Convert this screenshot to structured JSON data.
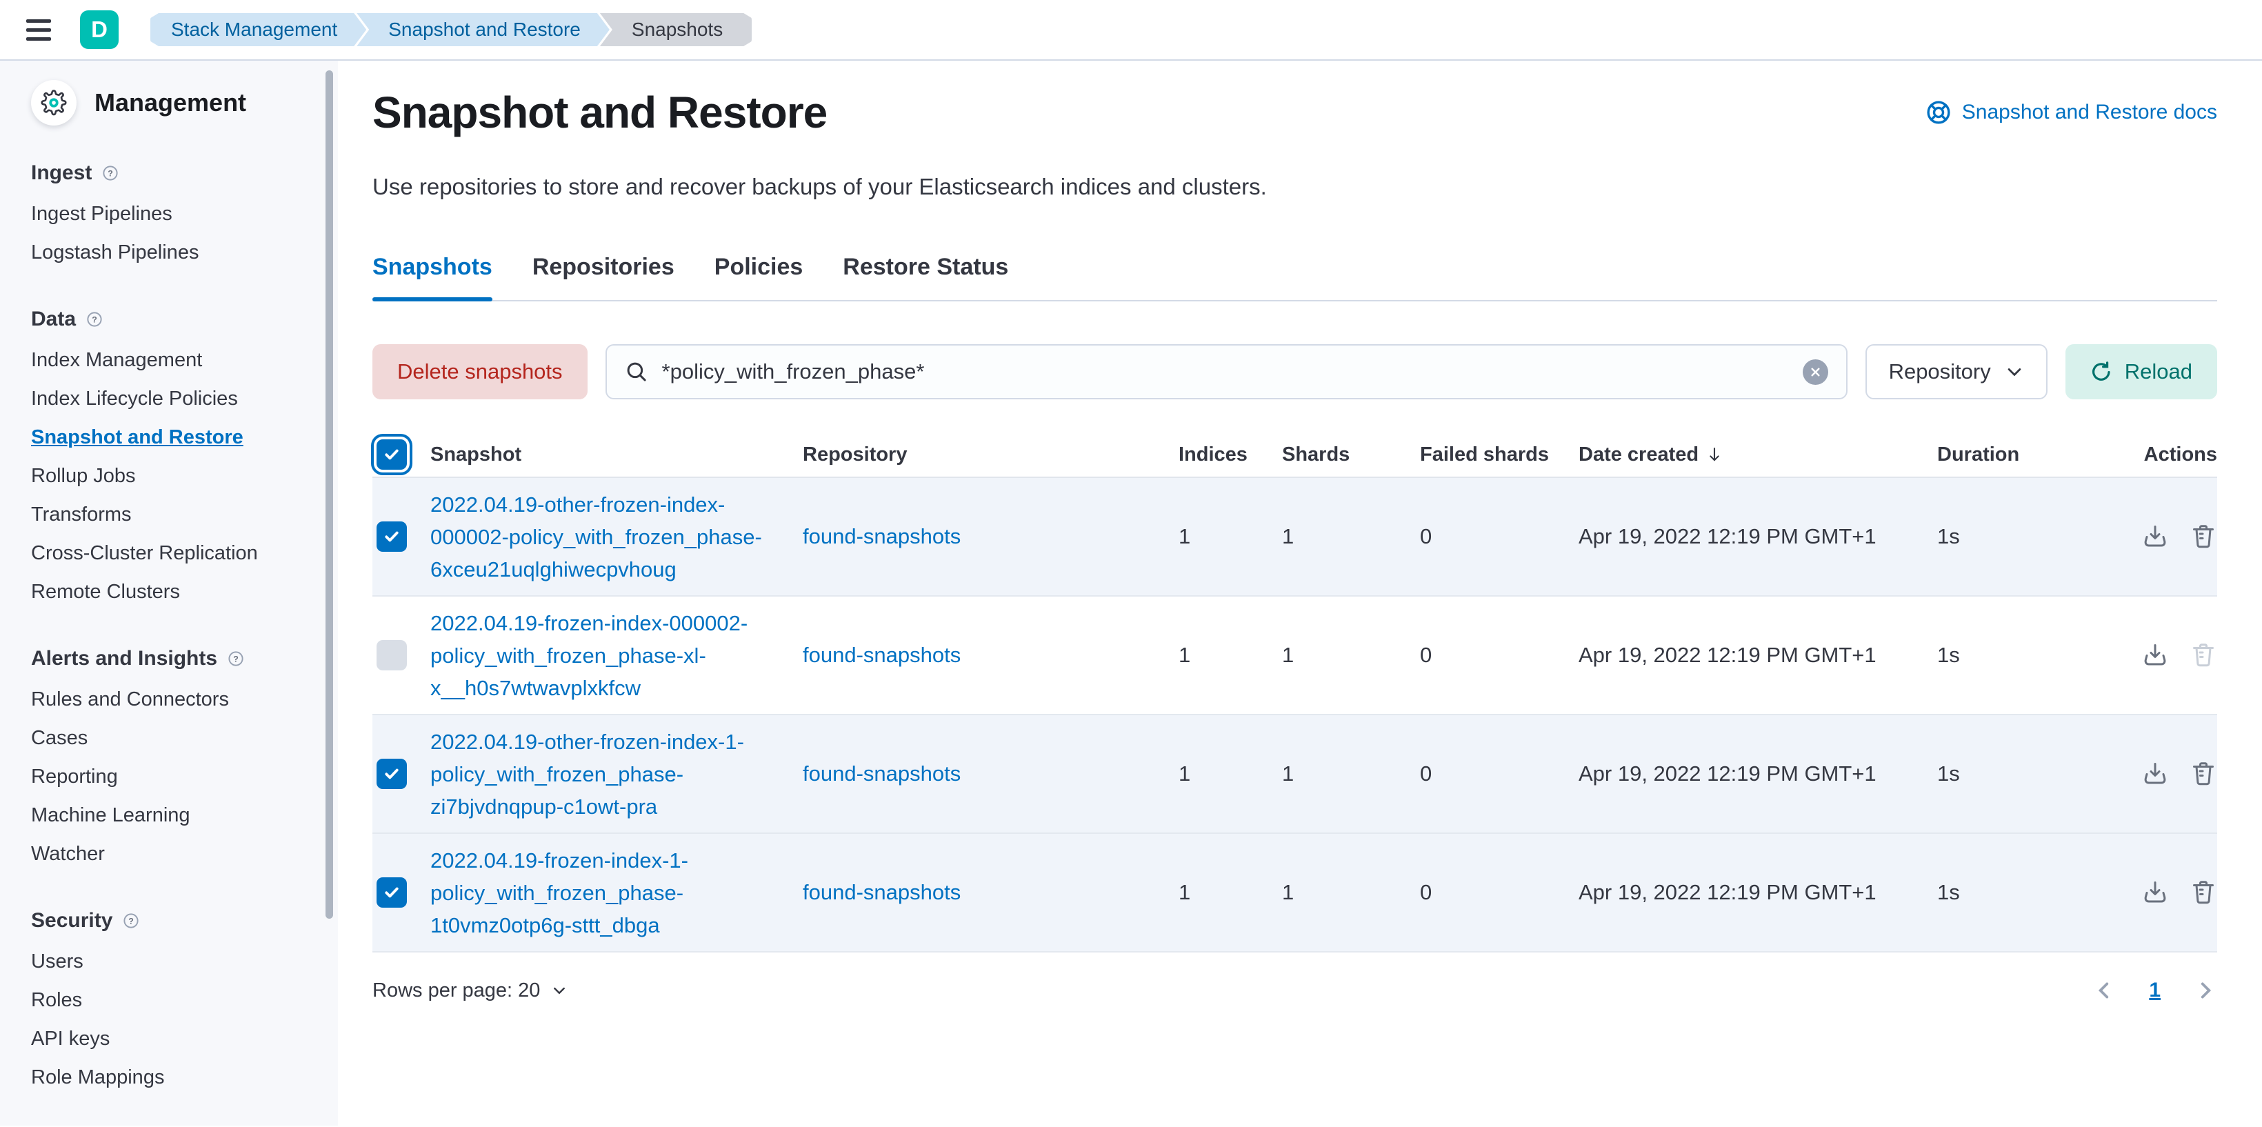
{
  "colors": {
    "accent": "#0071c2",
    "danger_text": "#b4251d",
    "danger_bg": "#f1d8d8",
    "success_text": "#00716b",
    "success_bg": "#d8f1ec",
    "avatar": "#00bfb3",
    "selected_row_bg": "#f0f4fa",
    "breadcrumb_blue_bg": "#cfe4f5",
    "breadcrumb_blue_text": "#00609e",
    "breadcrumb_gray_bg": "#d3d6dc"
  },
  "header": {
    "avatar_initial": "D",
    "breadcrumbs": [
      {
        "label": "Stack Management",
        "style": "blue"
      },
      {
        "label": "Snapshot and Restore",
        "style": "blue"
      },
      {
        "label": "Snapshots",
        "style": "gray"
      }
    ]
  },
  "sidebar": {
    "title": "Management",
    "sections": [
      {
        "label": "Ingest",
        "items": [
          {
            "label": "Ingest Pipelines"
          },
          {
            "label": "Logstash Pipelines"
          }
        ]
      },
      {
        "label": "Data",
        "items": [
          {
            "label": "Index Management"
          },
          {
            "label": "Index Lifecycle Policies"
          },
          {
            "label": "Snapshot and Restore",
            "active": true
          },
          {
            "label": "Rollup Jobs"
          },
          {
            "label": "Transforms"
          },
          {
            "label": "Cross-Cluster Replication"
          },
          {
            "label": "Remote Clusters"
          }
        ]
      },
      {
        "label": "Alerts and Insights",
        "items": [
          {
            "label": "Rules and Connectors"
          },
          {
            "label": "Cases"
          },
          {
            "label": "Reporting"
          },
          {
            "label": "Machine Learning"
          },
          {
            "label": "Watcher"
          }
        ]
      },
      {
        "label": "Security",
        "items": [
          {
            "label": "Users"
          },
          {
            "label": "Roles"
          },
          {
            "label": "API keys"
          },
          {
            "label": "Role Mappings"
          }
        ]
      }
    ]
  },
  "page": {
    "title": "Snapshot and Restore",
    "docs_link_label": "Snapshot and Restore docs",
    "subtitle": "Use repositories to store and recover backups of your Elasticsearch indices and clusters."
  },
  "tabs": [
    {
      "label": "Snapshots",
      "active": true
    },
    {
      "label": "Repositories",
      "active": false
    },
    {
      "label": "Policies",
      "active": false
    },
    {
      "label": "Restore Status",
      "active": false
    }
  ],
  "toolbar": {
    "delete_button_label": "Delete snapshots",
    "search_value": "*policy_with_frozen_phase*",
    "repository_filter_label": "Repository",
    "reload_button_label": "Reload"
  },
  "table": {
    "columns": [
      "Snapshot",
      "Repository",
      "Indices",
      "Shards",
      "Failed shards",
      "Date created",
      "Duration",
      "Actions"
    ],
    "sorted_column": "Date created",
    "sort_direction": "desc",
    "rows": [
      {
        "checked": true,
        "snapshot_lines": [
          "2022.04.19-other-frozen-index-",
          "000002-policy_with_frozen_phase-",
          "6xceu21uqlghiwecpvhoug"
        ],
        "repository": "found-snapshots",
        "indices": "1",
        "shards": "1",
        "failed_shards": "0",
        "date_created": "Apr 19, 2022 12:19 PM GMT+1",
        "duration": "1s",
        "delete_disabled": false
      },
      {
        "checked": false,
        "snapshot_lines": [
          "2022.04.19-frozen-index-000002-",
          "policy_with_frozen_phase-xl-",
          "x__h0s7wtwavplxkfcw"
        ],
        "repository": "found-snapshots",
        "indices": "1",
        "shards": "1",
        "failed_shards": "0",
        "date_created": "Apr 19, 2022 12:19 PM GMT+1",
        "duration": "1s",
        "delete_disabled": true
      },
      {
        "checked": true,
        "snapshot_lines": [
          "2022.04.19-other-frozen-index-1-",
          "policy_with_frozen_phase-",
          "zi7bjvdnqpup-c1owt-pra"
        ],
        "repository": "found-snapshots",
        "indices": "1",
        "shards": "1",
        "failed_shards": "0",
        "date_created": "Apr 19, 2022 12:19 PM GMT+1",
        "duration": "1s",
        "delete_disabled": false
      },
      {
        "checked": true,
        "snapshot_lines": [
          "2022.04.19-frozen-index-1-",
          "policy_with_frozen_phase-",
          "1t0vmz0otp6g-sttt_dbga"
        ],
        "repository": "found-snapshots",
        "indices": "1",
        "shards": "1",
        "failed_shards": "0",
        "date_created": "Apr 19, 2022 12:19 PM GMT+1",
        "duration": "1s",
        "delete_disabled": false
      }
    ]
  },
  "footer": {
    "rows_per_page_label": "Rows per page: 20",
    "current_page": "1"
  }
}
